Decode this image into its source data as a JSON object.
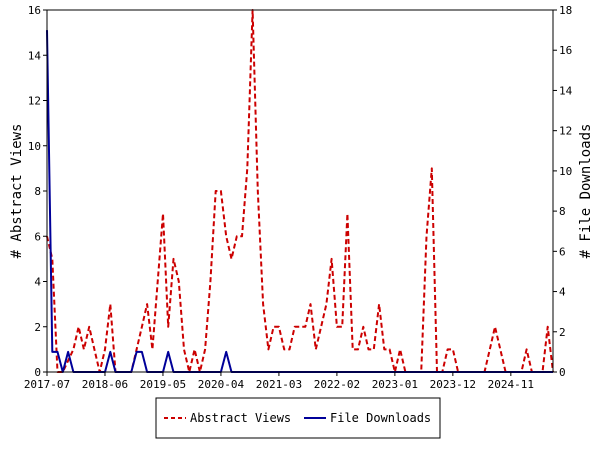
{
  "chart_data": {
    "type": "line",
    "ylabel_left": "# Abstract Views",
    "ylabel_right": "# File Downloads",
    "y_left_range": [
      0,
      16
    ],
    "y_right_range": [
      0,
      18
    ],
    "y_left_ticks": [
      "0",
      "2",
      "4",
      "6",
      "8",
      "10",
      "12",
      "14",
      "16"
    ],
    "y_right_ticks": [
      "0",
      "2",
      "4",
      "6",
      "8",
      "10",
      "12",
      "14",
      "16",
      "18"
    ],
    "x_range": [
      "2017-07",
      "2025-07"
    ],
    "x_ticks": [
      "2017-07",
      "2018-06",
      "2019-05",
      "2020-04",
      "2021-03",
      "2022-02",
      "2023-01",
      "2023-12",
      "2024-11"
    ],
    "grid": false,
    "legend_position": "bottom",
    "series": [
      {
        "name": "Abstract Views",
        "color": "#cc0000",
        "style": "dashed",
        "axis": "left",
        "points": [
          [
            "2017-07",
            6
          ],
          [
            "2017-08",
            5
          ],
          [
            "2017-09",
            0
          ],
          [
            "2017-10",
            0
          ],
          [
            "2017-11",
            0.5
          ],
          [
            "2017-12",
            1
          ],
          [
            "2018-01",
            2
          ],
          [
            "2018-02",
            1
          ],
          [
            "2018-03",
            2
          ],
          [
            "2018-04",
            1
          ],
          [
            "2018-05",
            0
          ],
          [
            "2018-06",
            1
          ],
          [
            "2018-07",
            3
          ],
          [
            "2018-08",
            0
          ],
          [
            "2018-09",
            0
          ],
          [
            "2018-10",
            0
          ],
          [
            "2018-11",
            0
          ],
          [
            "2018-12",
            1
          ],
          [
            "2019-01",
            2
          ],
          [
            "2019-02",
            3
          ],
          [
            "2019-03",
            1
          ],
          [
            "2019-04",
            4
          ],
          [
            "2019-05",
            7
          ],
          [
            "2019-06",
            2
          ],
          [
            "2019-07",
            5
          ],
          [
            "2019-08",
            4
          ],
          [
            "2019-09",
            1
          ],
          [
            "2019-10",
            0
          ],
          [
            "2019-11",
            1
          ],
          [
            "2019-12",
            0
          ],
          [
            "2020-01",
            1
          ],
          [
            "2020-02",
            4
          ],
          [
            "2020-03",
            8
          ],
          [
            "2020-04",
            8
          ],
          [
            "2020-05",
            6
          ],
          [
            "2020-06",
            5
          ],
          [
            "2020-07",
            6
          ],
          [
            "2020-08",
            6
          ],
          [
            "2020-09",
            9
          ],
          [
            "2020-10",
            16
          ],
          [
            "2020-11",
            8
          ],
          [
            "2020-12",
            3
          ],
          [
            "2021-01",
            1
          ],
          [
            "2021-02",
            2
          ],
          [
            "2021-03",
            2
          ],
          [
            "2021-04",
            1
          ],
          [
            "2021-05",
            1
          ],
          [
            "2021-06",
            2
          ],
          [
            "2021-07",
            2
          ],
          [
            "2021-08",
            2
          ],
          [
            "2021-09",
            3
          ],
          [
            "2021-10",
            1
          ],
          [
            "2021-11",
            2
          ],
          [
            "2021-12",
            3
          ],
          [
            "2022-01",
            5
          ],
          [
            "2022-02",
            2
          ],
          [
            "2022-03",
            2
          ],
          [
            "2022-04",
            7
          ],
          [
            "2022-05",
            1
          ],
          [
            "2022-06",
            1
          ],
          [
            "2022-07",
            2
          ],
          [
            "2022-08",
            1
          ],
          [
            "2022-09",
            1
          ],
          [
            "2022-10",
            3
          ],
          [
            "2022-11",
            1
          ],
          [
            "2022-12",
            1
          ],
          [
            "2023-01",
            0
          ],
          [
            "2023-02",
            1
          ],
          [
            "2023-03",
            0
          ],
          [
            "2023-04",
            0
          ],
          [
            "2023-05",
            0
          ],
          [
            "2023-06",
            0
          ],
          [
            "2023-07",
            6
          ],
          [
            "2023-08",
            9
          ],
          [
            "2023-09",
            0
          ],
          [
            "2023-10",
            0
          ],
          [
            "2023-11",
            1
          ],
          [
            "2023-12",
            1
          ],
          [
            "2024-01",
            0
          ],
          [
            "2024-02",
            0
          ],
          [
            "2024-03",
            0
          ],
          [
            "2024-04",
            0
          ],
          [
            "2024-05",
            0
          ],
          [
            "2024-06",
            0
          ],
          [
            "2024-07",
            1
          ],
          [
            "2024-08",
            2
          ],
          [
            "2024-09",
            1
          ],
          [
            "2024-10",
            0
          ],
          [
            "2024-11",
            0
          ],
          [
            "2024-12",
            0
          ],
          [
            "2025-01",
            0
          ],
          [
            "2025-02",
            1
          ],
          [
            "2025-03",
            0
          ],
          [
            "2025-04",
            0
          ],
          [
            "2025-05",
            0
          ],
          [
            "2025-06",
            2
          ],
          [
            "2025-07",
            0
          ]
        ]
      },
      {
        "name": "File Downloads",
        "color": "#000099",
        "style": "solid",
        "axis": "right",
        "points": [
          [
            "2017-07",
            17
          ],
          [
            "2017-08",
            1
          ],
          [
            "2017-09",
            1
          ],
          [
            "2017-10",
            0
          ],
          [
            "2017-11",
            1
          ],
          [
            "2017-12",
            0
          ],
          [
            "2018-01",
            0
          ],
          [
            "2018-02",
            0
          ],
          [
            "2018-03",
            0
          ],
          [
            "2018-04",
            0
          ],
          [
            "2018-05",
            0
          ],
          [
            "2018-06",
            0
          ],
          [
            "2018-07",
            1
          ],
          [
            "2018-08",
            0
          ],
          [
            "2018-09",
            0
          ],
          [
            "2018-10",
            0
          ],
          [
            "2018-11",
            0
          ],
          [
            "2018-12",
            1
          ],
          [
            "2019-01",
            1
          ],
          [
            "2019-02",
            0
          ],
          [
            "2019-03",
            0
          ],
          [
            "2019-04",
            0
          ],
          [
            "2019-05",
            0
          ],
          [
            "2019-06",
            1
          ],
          [
            "2019-07",
            0
          ],
          [
            "2019-08",
            0
          ],
          [
            "2019-09",
            0
          ],
          [
            "2019-10",
            0
          ],
          [
            "2019-11",
            0
          ],
          [
            "2019-12",
            0
          ],
          [
            "2020-01",
            0
          ],
          [
            "2020-02",
            0
          ],
          [
            "2020-03",
            0
          ],
          [
            "2020-04",
            0
          ],
          [
            "2020-05",
            1
          ],
          [
            "2020-06",
            0
          ],
          [
            "2020-07",
            0
          ],
          [
            "2020-08",
            0
          ],
          [
            "2020-09",
            0
          ],
          [
            "2020-10",
            0
          ],
          [
            "2021-06",
            0
          ],
          [
            "2022-06",
            0
          ],
          [
            "2023-06",
            0
          ],
          [
            "2024-06",
            0
          ],
          [
            "2025-07",
            0
          ]
        ]
      }
    ]
  }
}
